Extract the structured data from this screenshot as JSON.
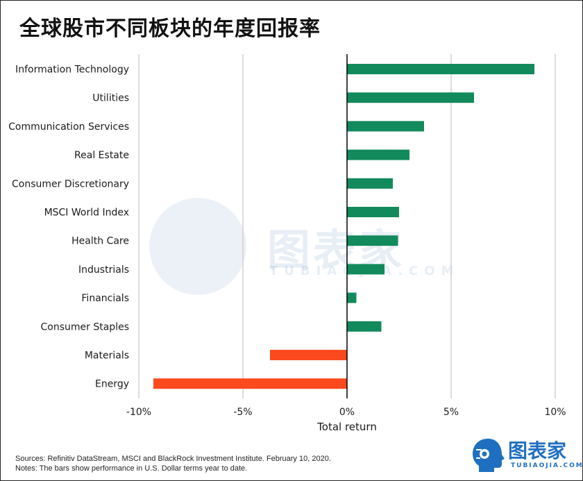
{
  "title": "全球股市不同板块的年度回报率",
  "chart_data": {
    "type": "bar",
    "orientation": "horizontal",
    "categories": [
      "Information Technology",
      "Utilities",
      "Communication Services",
      "Real Estate",
      "Consumer Discretionary",
      "MSCI World Index",
      "Health Care",
      "Industrials",
      "Financials",
      "Consumer Staples",
      "Materials",
      "Energy"
    ],
    "values": [
      9.0,
      6.1,
      3.7,
      3.0,
      2.2,
      2.5,
      2.45,
      1.8,
      0.45,
      1.65,
      -3.7,
      -9.3
    ],
    "xlim": [
      -10,
      10
    ],
    "xticks": [
      -10,
      -5,
      0,
      5,
      10
    ],
    "xtick_labels": [
      "-10%",
      "-5%",
      "0%",
      "5%",
      "10%"
    ],
    "xlabel": "Total return",
    "ylabel": "",
    "positive_color": "#128a5c",
    "negative_color": "#fb4a1e",
    "grid": "vertical"
  },
  "notes": {
    "sources": "Sources: Refinitiv DataStream, MSCI and BlackRock Investment Institute. February 10, 2020.",
    "notes": "Notes: The bars show performance in U.S. Dollar terms year to date."
  },
  "watermark": {
    "text": "图表家",
    "sub": "TUBIAOJIA.COM"
  },
  "logo": {
    "text": "图表家",
    "sub": "TUBIAOJIA.COM",
    "icon": "robot-head-icon"
  }
}
